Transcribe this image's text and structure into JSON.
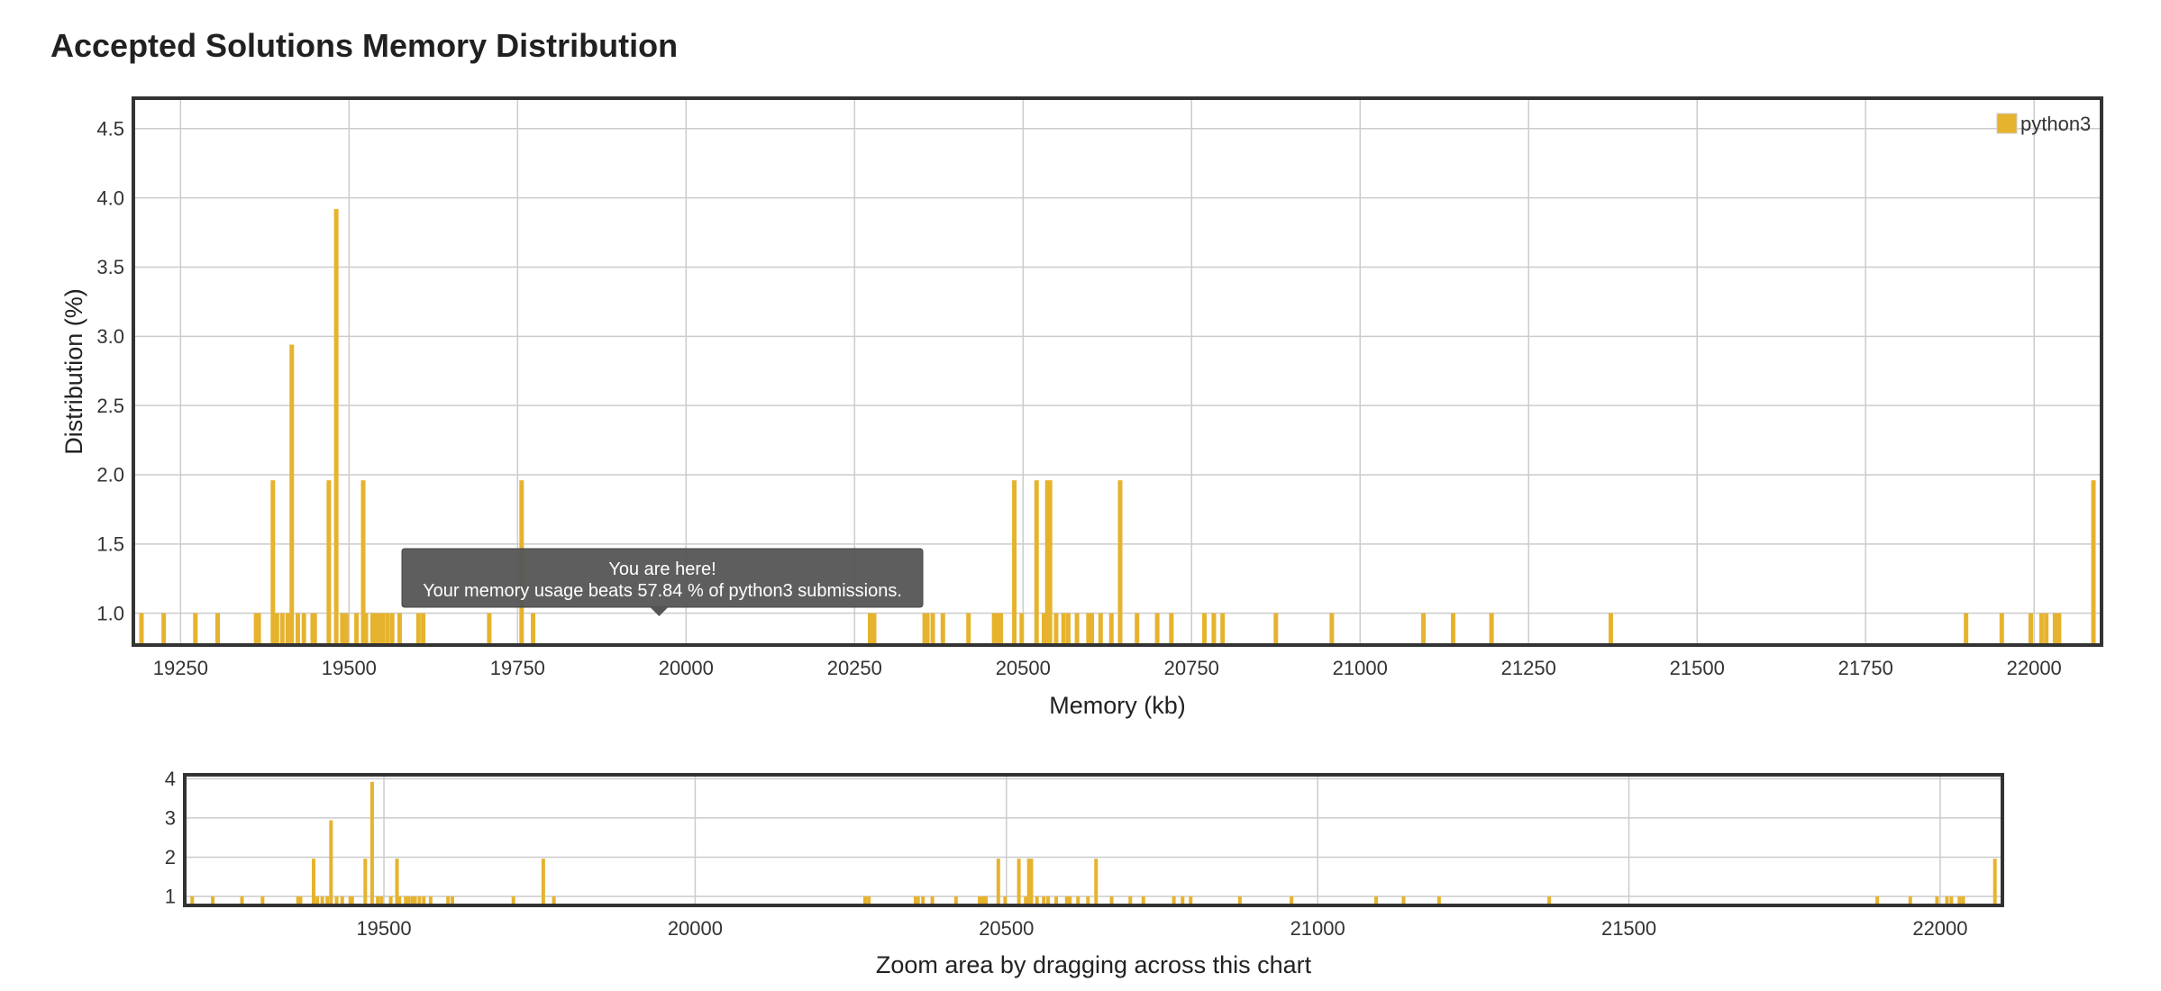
{
  "page": {
    "title": "Accepted Solutions Memory Distribution"
  },
  "tooltip": {
    "line1": "You are here!",
    "line2": "Your memory usage beats 57.84 % of python3 submissions.",
    "x": 19960
  },
  "colors": {
    "bar": "#e6b32e",
    "grid": "#cccccc",
    "frame": "#333333",
    "tooltip_bg": "#555555"
  },
  "chart_data": [
    {
      "type": "bar",
      "title": "",
      "xlabel": "Memory (kb)",
      "ylabel": "Distribution (%)",
      "xlim": [
        19180,
        22100
      ],
      "ylim": [
        0.77,
        4.72
      ],
      "xticks": [
        19250,
        19500,
        19750,
        20000,
        20250,
        20500,
        20750,
        21000,
        21250,
        21500,
        21750,
        22000
      ],
      "yticks": [
        "1.0",
        "1.5",
        "2.0",
        "2.5",
        "3.0",
        "3.5",
        "4.0",
        "4.5"
      ],
      "grid": true,
      "legend": "top-right",
      "series": [
        {
          "name": "python3",
          "points": [
            [
              19192,
              1
            ],
            [
              19225,
              1
            ],
            [
              19272,
              1
            ],
            [
              19305,
              1
            ],
            [
              19362,
              1
            ],
            [
              19366,
              1
            ],
            [
              19387,
              1.96
            ],
            [
              19393,
              1
            ],
            [
              19401,
              1
            ],
            [
              19409,
              1
            ],
            [
              19415,
              2.94
            ],
            [
              19424,
              1
            ],
            [
              19433,
              1
            ],
            [
              19446,
              1
            ],
            [
              19449,
              1
            ],
            [
              19470,
              1.96
            ],
            [
              19481,
              3.92
            ],
            [
              19490,
              1
            ],
            [
              19496,
              1
            ],
            [
              19511,
              1
            ],
            [
              19521,
              1.96
            ],
            [
              19525,
              1
            ],
            [
              19535,
              1
            ],
            [
              19540,
              1
            ],
            [
              19546,
              1
            ],
            [
              19550,
              1
            ],
            [
              19557,
              1
            ],
            [
              19564,
              1
            ],
            [
              19575,
              1
            ],
            [
              19603,
              1
            ],
            [
              19610,
              1
            ],
            [
              19708,
              1
            ],
            [
              19756,
              1.96
            ],
            [
              19773,
              1
            ],
            [
              20273,
              1
            ],
            [
              20279,
              1
            ],
            [
              20354,
              1
            ],
            [
              20358,
              1
            ],
            [
              20366,
              1
            ],
            [
              20381,
              1
            ],
            [
              20419,
              1
            ],
            [
              20457,
              1
            ],
            [
              20462,
              1
            ],
            [
              20467,
              1
            ],
            [
              20487,
              1.96
            ],
            [
              20498,
              1
            ],
            [
              20520,
              1.96
            ],
            [
              20531,
              1
            ],
            [
              20536,
              1.96
            ],
            [
              20540,
              1.96
            ],
            [
              20549,
              1
            ],
            [
              20560,
              1
            ],
            [
              20567,
              1
            ],
            [
              20580,
              1
            ],
            [
              20597,
              1
            ],
            [
              20602,
              1
            ],
            [
              20615,
              1
            ],
            [
              20631,
              1
            ],
            [
              20644,
              1.96
            ],
            [
              20669,
              1
            ],
            [
              20699,
              1
            ],
            [
              20720,
              1
            ],
            [
              20769,
              1
            ],
            [
              20783,
              1
            ],
            [
              20796,
              1
            ],
            [
              20875,
              1
            ],
            [
              20958,
              1
            ],
            [
              21094,
              1
            ],
            [
              21138,
              1
            ],
            [
              21195,
              1
            ],
            [
              21372,
              1
            ],
            [
              21899,
              1
            ],
            [
              21952,
              1
            ],
            [
              21995,
              1
            ],
            [
              22011,
              1
            ],
            [
              22018,
              1
            ],
            [
              22031,
              1
            ],
            [
              22037,
              1
            ],
            [
              22088,
              1.96
            ]
          ]
        }
      ]
    },
    {
      "type": "bar",
      "title": "",
      "xlabel": "Zoom area by dragging across this chart",
      "ylabel": "",
      "xlim": [
        19180,
        22100
      ],
      "ylim": [
        0.77,
        4.1
      ],
      "xticks": [
        19500,
        20000,
        20500,
        21000,
        21500,
        22000
      ],
      "yticks": [
        "1",
        "2",
        "3",
        "4"
      ],
      "grid": true,
      "series_ref": "python3"
    }
  ]
}
